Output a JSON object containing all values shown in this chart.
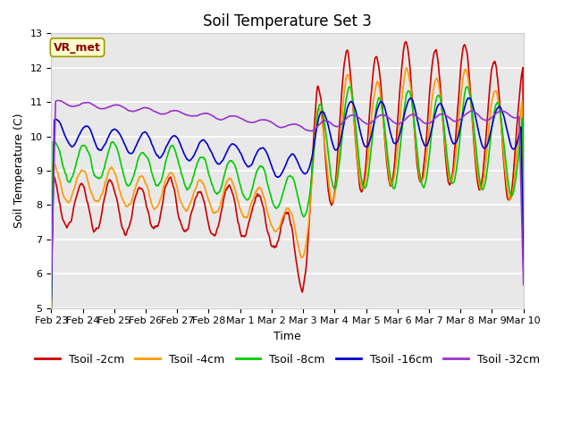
{
  "title": "Soil Temperature Set 3",
  "xlabel": "Time",
  "ylabel": "Soil Temperature (C)",
  "ylim": [
    5.0,
    13.0
  ],
  "yticks": [
    5.0,
    6.0,
    7.0,
    8.0,
    9.0,
    10.0,
    11.0,
    12.0,
    13.0
  ],
  "xtick_labels": [
    "Feb 23",
    "Feb 24",
    "Feb 25",
    "Feb 26",
    "Feb 27",
    "Feb 28",
    "Mar 1",
    "Mar 2",
    "Mar 3",
    "Mar 4",
    "Mar 5",
    "Mar 6",
    "Mar 7",
    "Mar 8",
    "Mar 9",
    "Mar 10"
  ],
  "series_colors": [
    "#cc0000",
    "#ff9900",
    "#00cc00",
    "#0000cc",
    "#9933cc"
  ],
  "series_labels": [
    "Tsoil -2cm",
    "Tsoil -4cm",
    "Tsoil -8cm",
    "Tsoil -16cm",
    "Tsoil -32cm"
  ],
  "plot_bg_color": "#e8e8e8",
  "annotation_text": "VR_met",
  "annotation_color": "#8b0000",
  "annotation_bg": "#ffffcc",
  "annotation_edge": "#999900",
  "grid_color": "#ffffff",
  "title_fontsize": 12,
  "tick_fontsize": 8,
  "label_fontsize": 9,
  "legend_fontsize": 9,
  "linewidth": 1.2
}
